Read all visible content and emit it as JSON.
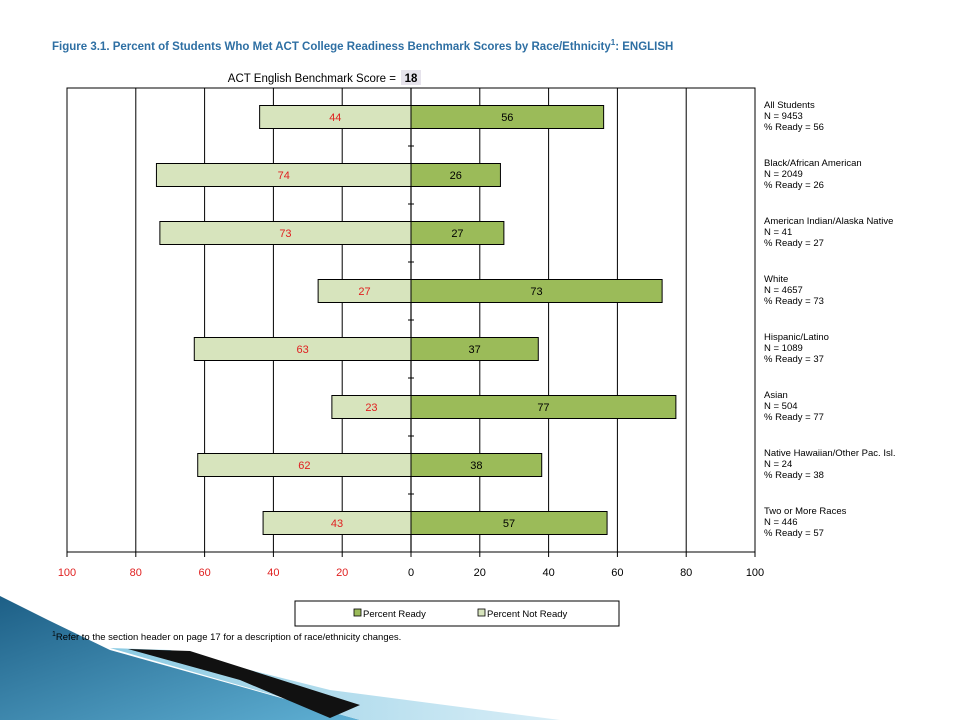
{
  "figure": {
    "title_prefix": "Figure 3.1.  Percent of Students Who Met ACT College Readiness Benchmark Scores by Race/Ethnicity",
    "title_sup": "1",
    "title_suffix": ": ENGLISH",
    "benchmark_label": "ACT English Benchmark Score  =",
    "benchmark_value": "18",
    "footnote_sup": "1",
    "footnote_text": "Refer to the section header on page 17 for a description of race/ethnicity changes."
  },
  "colors": {
    "ready_fill": "#9bbb59",
    "not_ready_fill": "#d7e4bd",
    "not_ready_text": "#e02020",
    "ready_text": "#000000",
    "title": "#2e6fa3",
    "neg_tick_text": "#e02020",
    "pos_tick_text": "#000000"
  },
  "chart_data": {
    "type": "bar",
    "orientation": "horizontal-diverging",
    "xlim": [
      -100,
      100
    ],
    "x_ticks": [
      -100,
      -80,
      -60,
      -40,
      -20,
      0,
      20,
      40,
      60,
      80,
      100
    ],
    "x_tick_labels": [
      "100",
      "80",
      "60",
      "40",
      "20",
      "0",
      "20",
      "40",
      "60",
      "80",
      "100"
    ],
    "grid": true,
    "legend_position": "bottom",
    "legend": [
      "Percent Ready",
      "Percent Not Ready"
    ],
    "categories": [
      {
        "name": "All Students",
        "n": "N = 9453",
        "ready_label": "% Ready = 56"
      },
      {
        "name": "Black/African American",
        "n": "N = 2049",
        "ready_label": "% Ready = 26"
      },
      {
        "name": "American Indian/Alaska Native",
        "n": "N = 41",
        "ready_label": "% Ready = 27"
      },
      {
        "name": "White",
        "n": "N = 4657",
        "ready_label": "% Ready = 73"
      },
      {
        "name": "Hispanic/Latino",
        "n": "N = 1089",
        "ready_label": "% Ready = 37"
      },
      {
        "name": "Asian",
        "n": "N = 504",
        "ready_label": "% Ready = 77"
      },
      {
        "name": "Native Hawaiian/Other Pac. Isl.",
        "n": "N = 24",
        "ready_label": "% Ready = 38"
      },
      {
        "name": "Two or More Races",
        "n": "N = 446",
        "ready_label": "% Ready = 57"
      }
    ],
    "series": [
      {
        "name": "Percent Ready",
        "values": [
          56,
          26,
          27,
          73,
          37,
          77,
          38,
          57
        ]
      },
      {
        "name": "Percent Not Ready",
        "values": [
          44,
          74,
          73,
          27,
          63,
          23,
          62,
          43
        ]
      }
    ]
  }
}
